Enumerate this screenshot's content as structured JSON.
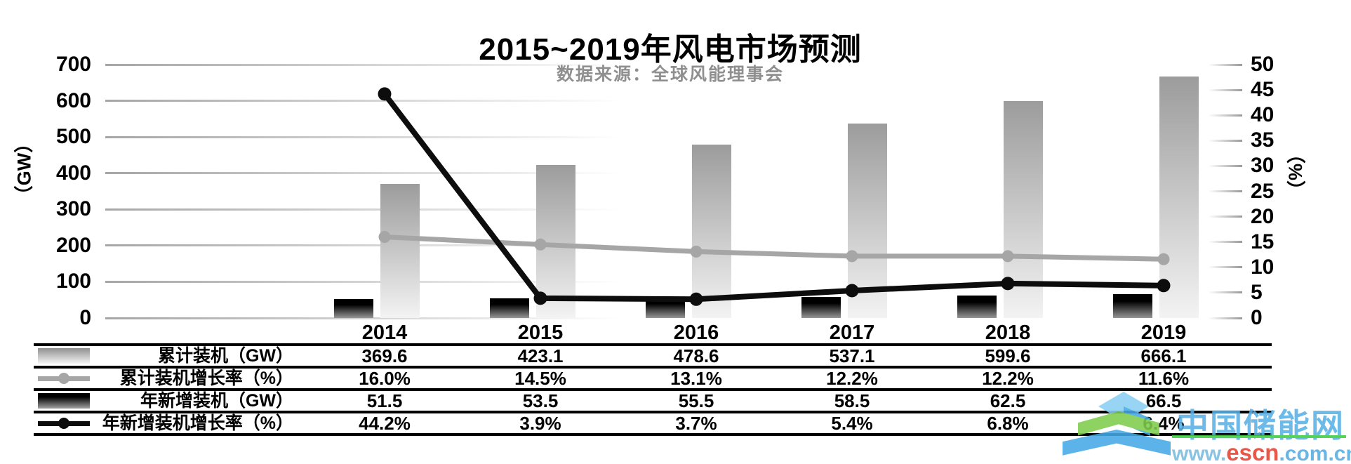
{
  "header": {
    "title": "2015~2019年风电市场预测",
    "subtitle": "数据来源：全球风能理事会"
  },
  "chart_data": {
    "type": "combo-bar-line",
    "categories": [
      "2014",
      "2015",
      "2016",
      "2017",
      "2018",
      "2019"
    ],
    "series": [
      {
        "name": "累计装机（GW）",
        "type": "bar",
        "axis": "left",
        "style": "gray-gradient",
        "values": [
          369.6,
          423.1,
          478.6,
          537.1,
          599.6,
          666.1
        ]
      },
      {
        "name": "累计装机增长率（%）",
        "type": "line",
        "axis": "right",
        "color": "#a6a6a6",
        "values": [
          16.0,
          14.5,
          13.1,
          12.2,
          12.2,
          11.6
        ]
      },
      {
        "name": "年新增装机（GW）",
        "type": "bar",
        "axis": "left",
        "style": "black-gradient",
        "values": [
          51.5,
          53.5,
          55.5,
          58.5,
          62.5,
          66.5
        ]
      },
      {
        "name": "年新增装机增长率（%）",
        "type": "line",
        "axis": "right",
        "color": "#0d0d0d",
        "values": [
          44.2,
          3.9,
          3.7,
          5.4,
          6.8,
          6.4
        ]
      }
    ],
    "left_axis": {
      "label": "（GW）",
      "min": 0,
      "max": 700,
      "step": 100
    },
    "right_axis": {
      "label": "（%）",
      "min": 0,
      "max": 50,
      "step": 5
    },
    "grid": "horizontal-fading",
    "legend_position": "table-left-column"
  },
  "watermark": {
    "site_name": "中国储能网",
    "url_prefix": "www.",
    "url_highlight": "escn",
    "url_suffix": ".com.cn",
    "colors": {
      "blue": "#59b1e6",
      "red": "#e6402f",
      "green": "#3fcc41",
      "cube_light_blue": "#8ad0f3",
      "cube_blue": "#45a9e6",
      "cube_green": "#7fce4d"
    }
  }
}
